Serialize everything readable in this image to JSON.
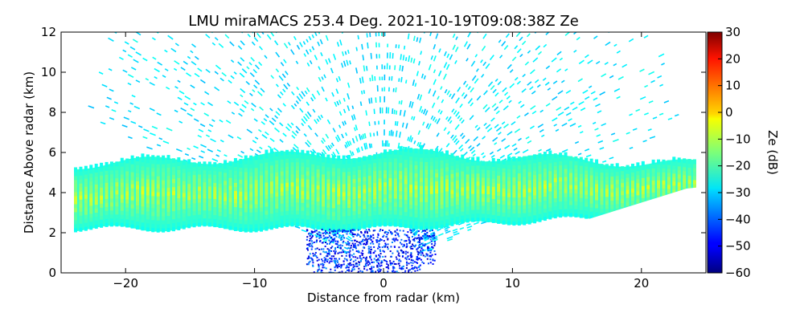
{
  "chart_data": {
    "type": "heatmap",
    "title": "LMU miraMACS 253.4 Deg. 2021-10-19T09:08:38Z  Ze",
    "xlabel": "Distance from radar (km)",
    "ylabel": "Distance Above radar  (km)",
    "xlim": [
      -25,
      25
    ],
    "ylim": [
      0,
      12
    ],
    "xticks": [
      -20,
      -10,
      0,
      10,
      20
    ],
    "xtick_labels": [
      "−20",
      "−10",
      "0",
      "10",
      "20"
    ],
    "yticks": [
      0,
      2,
      4,
      6,
      8,
      10,
      12
    ],
    "ytick_labels": [
      "0",
      "2",
      "4",
      "6",
      "8",
      "10",
      "12"
    ],
    "grid": false,
    "colorbar": {
      "label": "Ze (dB)",
      "range": [
        -60,
        30
      ],
      "colormap": "jet",
      "ticks": [
        -60,
        -50,
        -40,
        -30,
        -20,
        -10,
        0,
        10,
        20,
        30
      ],
      "tick_labels": [
        "−60",
        "−50",
        "−40",
        "−30",
        "−20",
        "−10",
        "0",
        "10",
        "20",
        "30"
      ]
    },
    "scan": {
      "type": "RHI",
      "azimuth_deg": 253.4,
      "max_range_km": 24,
      "main_layer": {
        "base_km": 2.2,
        "top_km": 6.0,
        "typical_ze_db": [
          -25,
          -5
        ]
      },
      "noise_ze_db": [
        -32,
        -24
      ],
      "low_level_echo_ze_db": [
        -55,
        -35
      ]
    }
  }
}
